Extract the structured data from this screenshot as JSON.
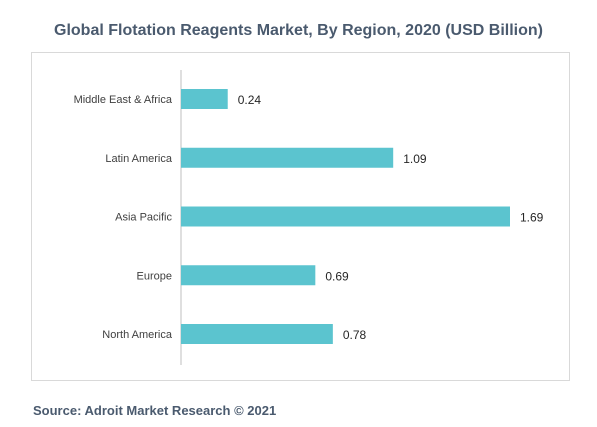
{
  "chart_data": {
    "type": "bar",
    "orientation": "horizontal",
    "title": "Global Flotation Reagents Market, By Region, 2020 (USD Billion)",
    "categories": [
      "Middle East & Africa",
      "Latin America",
      "Asia Pacific",
      "Europe",
      "North America"
    ],
    "values": [
      0.24,
      1.09,
      1.69,
      0.69,
      0.78
    ],
    "value_labels": [
      "0.24",
      "1.09",
      "1.69",
      "0.69",
      "0.78"
    ],
    "xlim": [
      0,
      1.8
    ],
    "grid": false,
    "legend": "none",
    "bar_color": "#5bc4cf"
  },
  "source": "Source: Adroit Market Research © 2021"
}
